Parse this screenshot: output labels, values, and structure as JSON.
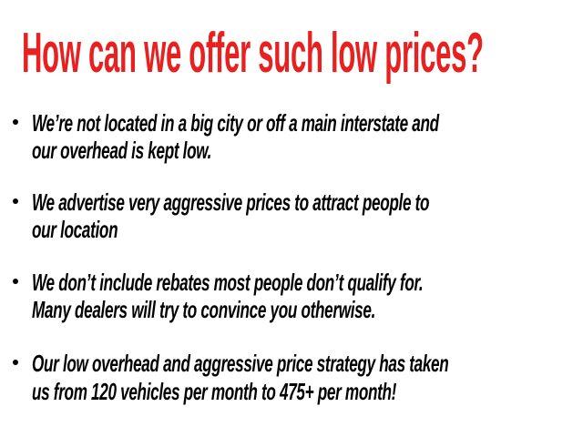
{
  "title": "How can we offer such low prices?",
  "title_color": "#e8201f",
  "bullets": [
    {
      "lines": [
        "We’re not located in a big city or off a main interstate and",
        "our overhead is kept low."
      ]
    },
    {
      "lines": [
        "We advertise very aggressive prices to attract people to",
        "our location"
      ]
    },
    {
      "lines": [
        "We don’t include rebates most people don’t qualify for.",
        "Many dealers will try to convince you otherwise."
      ]
    },
    {
      "lines": [
        "Our low overhead and aggressive price strategy has taken",
        "us from 120 vehicles per month to 475+ per month!"
      ]
    }
  ]
}
